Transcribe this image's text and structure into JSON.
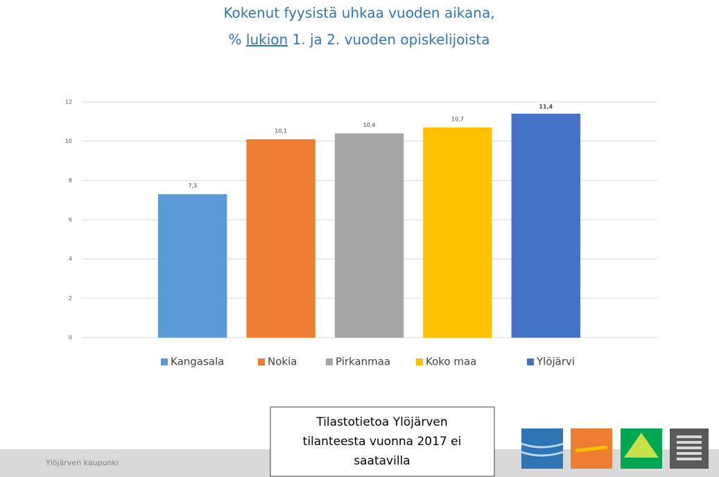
{
  "title_line1": "Kokenut fyysistä uhkaa vuoden aikana,",
  "title_line2_parts": [
    "% ",
    "lukion",
    " 1. ja 2. vuoden opiskelijoista"
  ],
  "chart_data": {
    "type": "bar",
    "categories": [
      "Kangasala",
      "Nokia",
      "Pirkanmaa",
      "Koko maa",
      "Ylöjärvi"
    ],
    "values": [
      7.3,
      10.1,
      10.4,
      10.7,
      11.4
    ],
    "value_labels": [
      "7,3",
      "10,1",
      "10,4",
      "10,7",
      "11,4"
    ],
    "colors": [
      "#5b9bd5",
      "#ed7d31",
      "#a5a5a5",
      "#ffc000",
      "#4472c4"
    ],
    "ylim": [
      0,
      12
    ],
    "yticks": [
      0,
      2,
      4,
      6,
      8,
      10,
      12
    ],
    "grid": true,
    "legend": "bottom"
  },
  "footer": "Ylöjärven kaupunki",
  "notice_lines": [
    "Tilastotietoa Ylöjärven",
    "tilanteesta vuonna 2017 ei",
    "saatavilla"
  ]
}
